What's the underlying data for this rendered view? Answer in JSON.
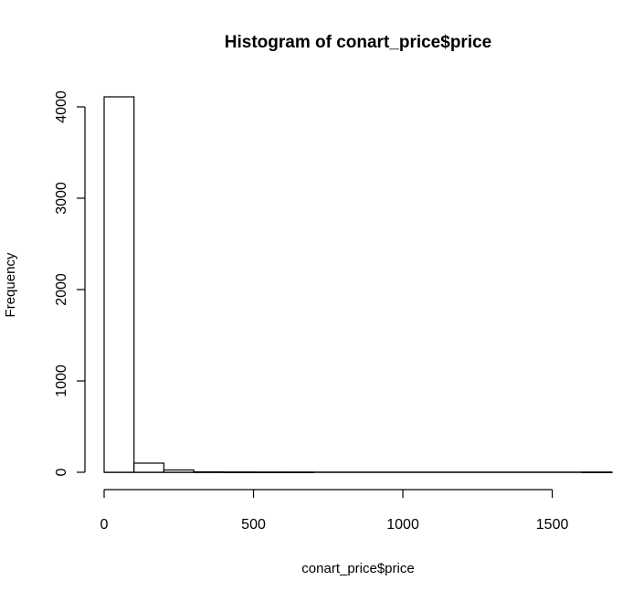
{
  "chart_data": {
    "type": "bar",
    "title": "Histogram of conart_price$price",
    "xlabel": "conart_price$price",
    "ylabel": "Frequency",
    "bin_width": 100,
    "bins": [
      {
        "start": 0,
        "end": 100,
        "count": 4110
      },
      {
        "start": 100,
        "end": 200,
        "count": 100
      },
      {
        "start": 200,
        "end": 300,
        "count": 25
      },
      {
        "start": 300,
        "end": 400,
        "count": 4
      },
      {
        "start": 400,
        "end": 500,
        "count": 2
      },
      {
        "start": 500,
        "end": 600,
        "count": 1
      },
      {
        "start": 600,
        "end": 700,
        "count": 1
      },
      {
        "start": 700,
        "end": 800,
        "count": 0
      },
      {
        "start": 800,
        "end": 900,
        "count": 0
      },
      {
        "start": 900,
        "end": 1000,
        "count": 0
      },
      {
        "start": 1000,
        "end": 1100,
        "count": 0
      },
      {
        "start": 1100,
        "end": 1200,
        "count": 0
      },
      {
        "start": 1200,
        "end": 1300,
        "count": 0
      },
      {
        "start": 1300,
        "end": 1400,
        "count": 0
      },
      {
        "start": 1400,
        "end": 1500,
        "count": 0
      },
      {
        "start": 1500,
        "end": 1600,
        "count": 0
      },
      {
        "start": 1600,
        "end": 1700,
        "count": 1
      }
    ],
    "xlim": [
      0,
      1700
    ],
    "ylim": [
      0,
      4110
    ],
    "x_ticks": [
      0,
      500,
      1000,
      1500
    ],
    "x_tick_labels": [
      "0",
      "500",
      "1000",
      "1500"
    ],
    "y_ticks": [
      0,
      1000,
      2000,
      3000,
      4000
    ],
    "y_tick_labels": [
      "0",
      "1000",
      "2000",
      "3000",
      "4000"
    ],
    "grid": false,
    "legend": "none",
    "colors": {
      "bar_fill": "#ffffff",
      "bar_stroke": "#000000",
      "axis": "#000000"
    }
  }
}
